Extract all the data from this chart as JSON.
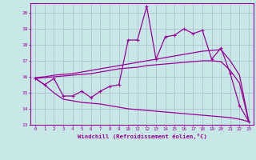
{
  "xlabel": "Windchill (Refroidissement éolien,°C)",
  "x": [
    0,
    1,
    2,
    3,
    4,
    5,
    6,
    7,
    8,
    9,
    10,
    11,
    12,
    13,
    14,
    15,
    16,
    17,
    18,
    19,
    20,
    21,
    22,
    23
  ],
  "main_line": [
    15.9,
    15.5,
    15.9,
    14.8,
    14.8,
    15.1,
    14.7,
    15.1,
    15.4,
    15.5,
    18.3,
    18.3,
    20.4,
    17.1,
    18.5,
    18.6,
    19.0,
    18.7,
    18.9,
    17.1,
    17.8,
    16.2,
    14.2,
    13.2
  ],
  "upper_line": [
    15.95,
    16.0,
    16.1,
    16.15,
    16.2,
    16.3,
    16.4,
    16.5,
    16.6,
    16.7,
    16.8,
    16.9,
    17.0,
    17.1,
    17.2,
    17.3,
    17.4,
    17.5,
    17.6,
    17.65,
    17.7,
    17.0,
    16.1,
    13.2
  ],
  "mid_line": [
    15.9,
    15.95,
    16.0,
    16.05,
    16.1,
    16.15,
    16.2,
    16.3,
    16.4,
    16.5,
    16.55,
    16.6,
    16.7,
    16.75,
    16.8,
    16.85,
    16.9,
    16.95,
    17.0,
    17.0,
    16.95,
    16.4,
    15.6,
    13.2
  ],
  "lower_line": [
    15.9,
    15.5,
    15.0,
    14.6,
    14.5,
    14.4,
    14.35,
    14.3,
    14.2,
    14.1,
    14.0,
    13.95,
    13.9,
    13.85,
    13.8,
    13.75,
    13.7,
    13.65,
    13.6,
    13.55,
    13.5,
    13.45,
    13.35,
    13.2
  ],
  "ylim": [
    13,
    20.6
  ],
  "xlim": [
    -0.5,
    23.5
  ],
  "yticks": [
    13,
    14,
    15,
    16,
    17,
    18,
    19,
    20
  ],
  "xticks": [
    0,
    1,
    2,
    3,
    4,
    5,
    6,
    7,
    8,
    9,
    10,
    11,
    12,
    13,
    14,
    15,
    16,
    17,
    18,
    19,
    20,
    21,
    22,
    23
  ],
  "line_color": "#990099",
  "bg_color": "#c8e8e8",
  "grid_color": "#aabbcc",
  "font_family": "monospace"
}
